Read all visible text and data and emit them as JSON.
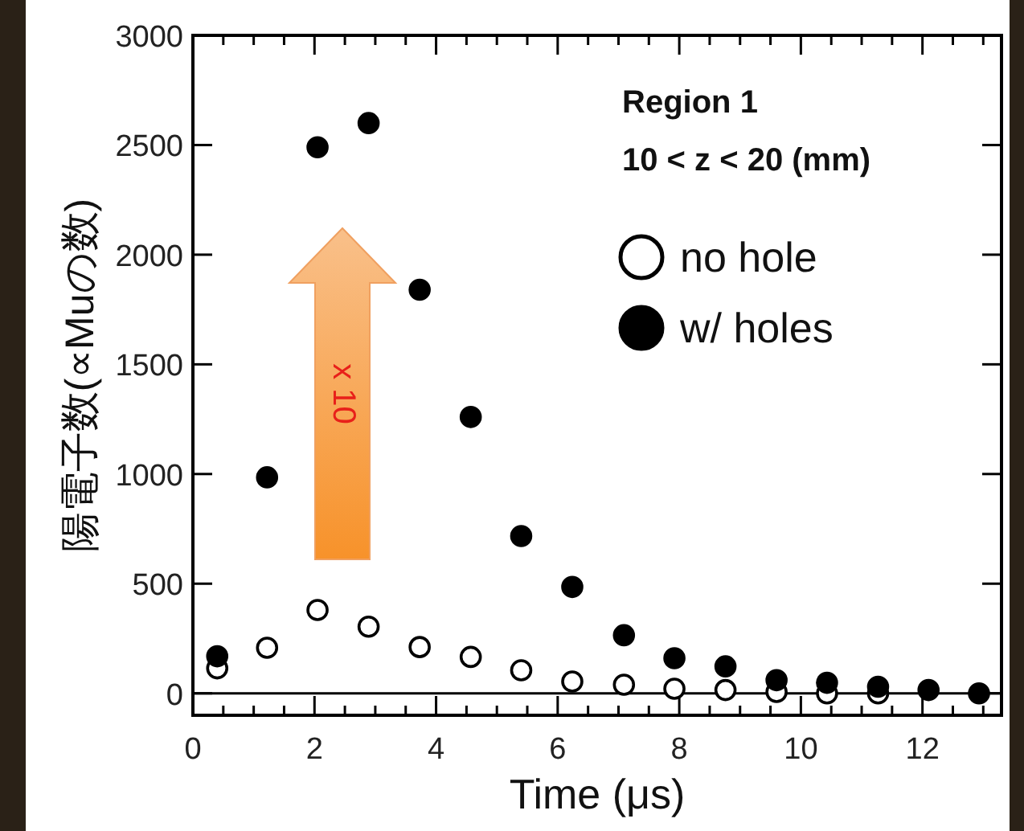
{
  "chart_data": {
    "type": "scatter",
    "xlabel": "Time (μs)",
    "ylabel": "陽電子数(∝Muの数)",
    "annotations": [
      "Region 1",
      "10 < z < 20 (mm)",
      "x 10"
    ],
    "xlim": [
      0,
      13.3
    ],
    "ylim": [
      -100,
      3000
    ],
    "xticks": [
      0,
      {
        "value": 0.5,
        "label": null
      },
      {
        "value": 1,
        "label": null
      },
      {
        "value": 1.5,
        "label": null
      },
      2,
      {
        "value": 2.5,
        "label": null
      },
      {
        "value": 3,
        "label": null
      },
      {
        "value": 3.5,
        "label": null
      },
      4,
      {
        "value": 4.5,
        "label": null
      },
      {
        "value": 5,
        "label": null
      },
      {
        "value": 5.5,
        "label": null
      },
      6,
      {
        "value": 6.5,
        "label": null
      },
      {
        "value": 7,
        "label": null
      },
      {
        "value": 7.5,
        "label": null
      },
      8,
      {
        "value": 8.5,
        "label": null
      },
      {
        "value": 9,
        "label": null
      },
      {
        "value": 9.5,
        "label": null
      },
      10,
      {
        "value": 10.5,
        "label": null
      },
      {
        "value": 11,
        "label": null
      },
      {
        "value": 11.5,
        "label": null
      },
      12,
      {
        "value": 12.5,
        "label": null
      },
      {
        "value": 13,
        "label": null
      }
    ],
    "yticks": [
      0,
      500,
      1000,
      1500,
      2000,
      2500,
      3000
    ],
    "marker": "circle",
    "legend": "top right",
    "ref_lines": [
      {
        "axis": "y",
        "value": 0,
        "color": "#000000"
      }
    ],
    "x": [
      0.4,
      1.22,
      2.05,
      2.89,
      3.73,
      4.57,
      5.4,
      6.24,
      7.09,
      7.92,
      8.76,
      9.6,
      10.43,
      11.27,
      12.1,
      12.93
    ],
    "series": [
      {
        "name": "no hole",
        "color": "#ffffff",
        "values": [
          114,
          208,
          380,
          304,
          211,
          166,
          105,
          54,
          39,
          21,
          15,
          6,
          0,
          0,
          null,
          null
        ]
      },
      {
        "name": "w/ holes",
        "color": "#000000",
        "values": [
          169,
          985,
          2490,
          2600,
          1840,
          1260,
          717,
          485,
          265,
          160,
          123,
          60,
          48,
          30,
          15,
          0
        ]
      }
    ]
  }
}
